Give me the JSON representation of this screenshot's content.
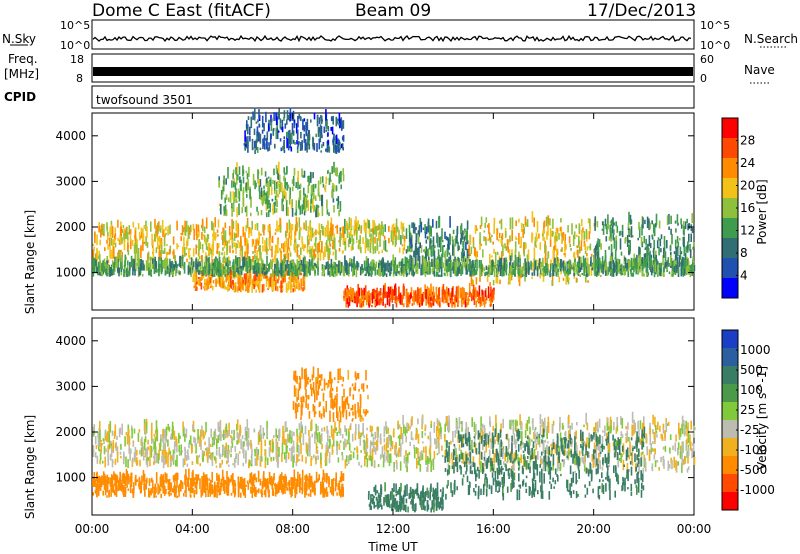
{
  "header": {
    "station": "Dome C East (fitACF)",
    "beam": "Beam 09",
    "date": "17/Dec/2013"
  },
  "strip": {
    "nsky_label": "N.Sky",
    "nsky_ticks": [
      "10^5",
      "10^0"
    ],
    "nsearch_label": "N.Search",
    "nsearch_ticks": [
      "10^5",
      "10^0"
    ],
    "freq_label": "Freq.",
    "freq_unit": "[MHz]",
    "freq_ticks": [
      "18",
      "8"
    ],
    "nave_label": "Nave",
    "nave_ticks": [
      "60",
      "0"
    ],
    "cpid_label": "CPID",
    "cpid_value": "twofsound 3501"
  },
  "colors": {
    "power": [
      "#0000ff",
      "#2050b0",
      "#306e74",
      "#3f9b4d",
      "#8fc03c",
      "#f2c219",
      "#ff8c00",
      "#ff4800",
      "#ff0000"
    ],
    "velocity": [
      "#1a3fc4",
      "#2c5fa0",
      "#3a7d65",
      "#4a9a4a",
      "#7fc93b",
      "#bcbcb0",
      "#f0b020",
      "#ff8c00",
      "#ff4a00",
      "#ff0000"
    ]
  },
  "chart_data": [
    {
      "type": "heatmap",
      "title": "Power",
      "xlabel": "Time UT",
      "ylabel": "Slant Range [km]",
      "x_ticks": [
        "00:00",
        "04:00",
        "08:00",
        "12:00",
        "16:00",
        "20:00",
        "00:00"
      ],
      "y_ticks": [
        "1000",
        "2000",
        "3000",
        "4000"
      ],
      "ylim": [
        180,
        4500
      ],
      "colorbar_label": "Power [dB]",
      "colorbar_ticks": [
        "4",
        "8",
        "12",
        "16",
        "20",
        "24",
        "28"
      ],
      "colorbar_range": [
        0,
        32
      ],
      "regions": [
        {
          "t0": 0,
          "t1": 9.8,
          "r0": 1200,
          "r1": 2000,
          "value": 22
        },
        {
          "t0": 9.8,
          "t1": 12.5,
          "r0": 1400,
          "r1": 2000,
          "value": 20
        },
        {
          "t0": 12.5,
          "t1": 15,
          "r0": 1200,
          "r1": 2000,
          "value": 12
        },
        {
          "t0": 15,
          "t1": 20,
          "r0": 700,
          "r1": 2100,
          "value": 22
        },
        {
          "t0": 20,
          "t1": 24,
          "r0": 1000,
          "r1": 2100,
          "value": 13
        },
        {
          "t0": 4,
          "t1": 8.5,
          "r0": 550,
          "r1": 950,
          "value": 25
        },
        {
          "t0": 10,
          "t1": 16,
          "r0": 230,
          "r1": 520,
          "value": 29
        },
        {
          "t0": 0,
          "t1": 24,
          "r0": 900,
          "r1": 1150,
          "value": 14
        },
        {
          "t0": 5,
          "t1": 10,
          "r0": 2200,
          "r1": 3200,
          "value": 16
        },
        {
          "t0": 6,
          "t1": 10,
          "r0": 3600,
          "r1": 4400,
          "value": 8
        }
      ]
    },
    {
      "type": "heatmap",
      "title": "Velocity",
      "xlabel": "Time UT",
      "ylabel": "Slant Range [km]",
      "x_ticks": [
        "00:00",
        "04:00",
        "08:00",
        "12:00",
        "16:00",
        "20:00",
        "00:00"
      ],
      "y_ticks": [
        "1000",
        "2000",
        "3000",
        "4000"
      ],
      "ylim": [
        180,
        4500
      ],
      "colorbar_label": "Velocity [m s^-1]",
      "colorbar_ticks": [
        "1000",
        "500",
        "100",
        "25",
        "-25",
        "-100",
        "-500",
        "-1000"
      ],
      "regions": [
        {
          "t0": 0,
          "t1": 12,
          "r0": 1200,
          "r1": 2050,
          "value": 0
        },
        {
          "t0": 12,
          "t1": 24,
          "r0": 1100,
          "r1": 2200,
          "value": 0
        },
        {
          "t0": 0,
          "t1": 10,
          "r0": 550,
          "r1": 950,
          "value": -200
        },
        {
          "t0": 14,
          "t1": 22,
          "r0": 500,
          "r1": 1900,
          "value": 150
        },
        {
          "t0": 8,
          "t1": 11,
          "r0": 2200,
          "r1": 3200,
          "value": -150
        },
        {
          "t0": 11,
          "t1": 14,
          "r0": 230,
          "r1": 700,
          "value": 150
        }
      ]
    }
  ]
}
